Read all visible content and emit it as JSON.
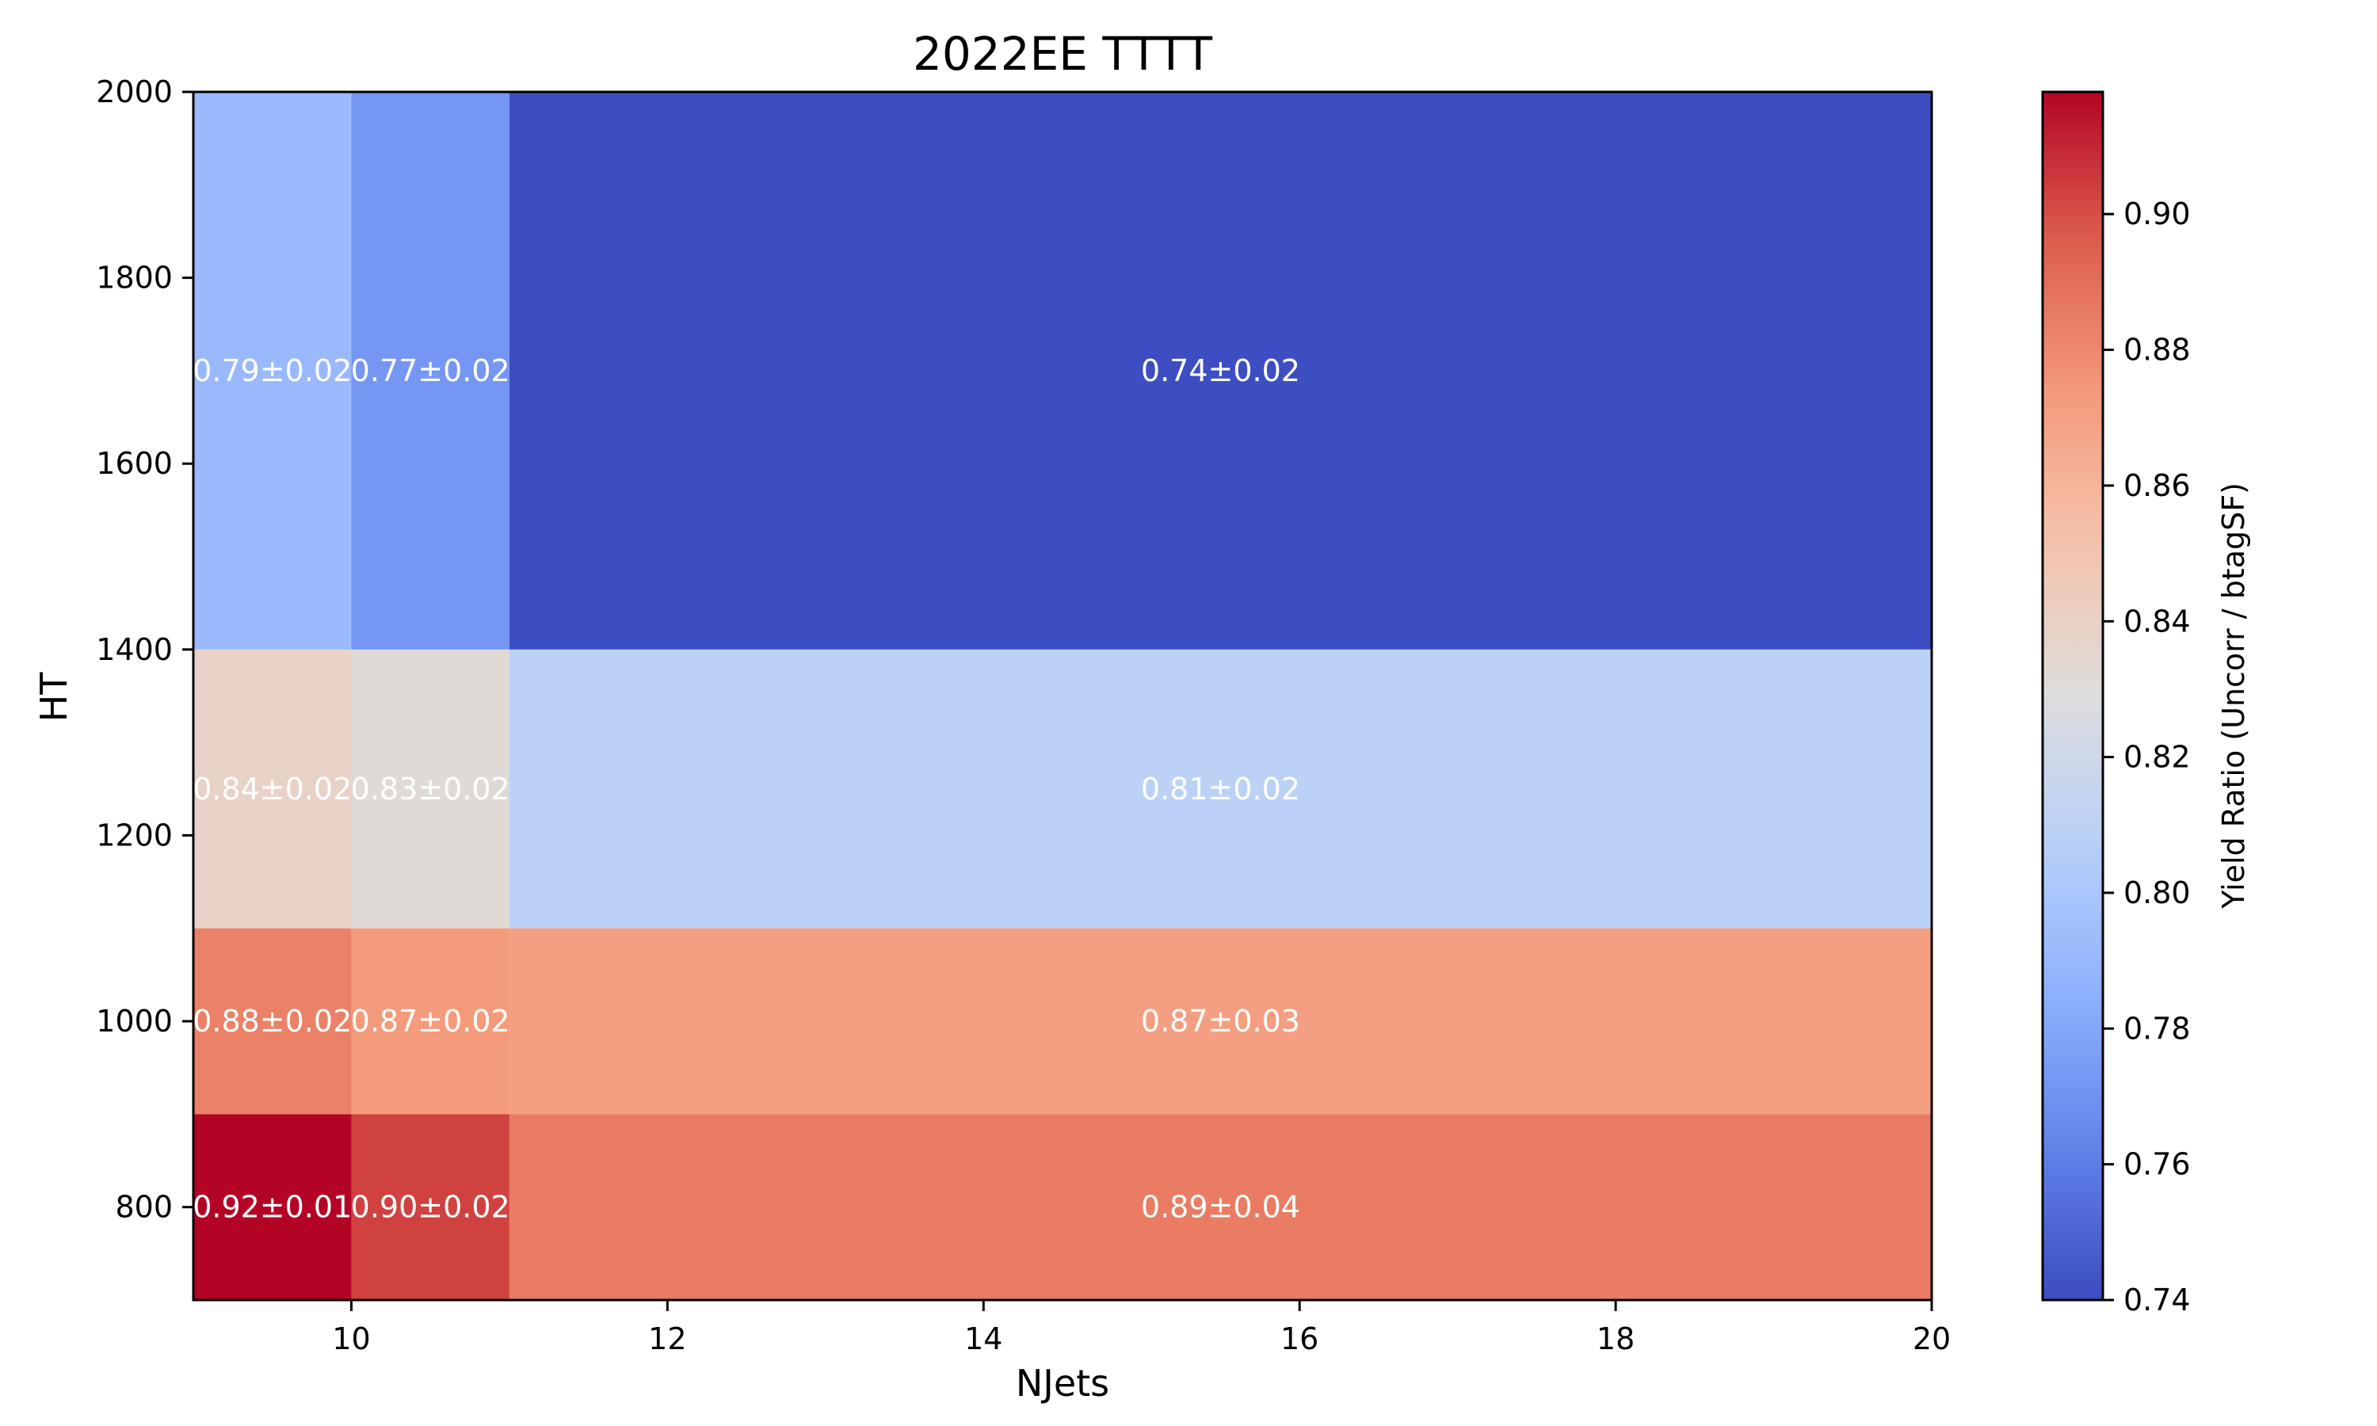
{
  "chart_data": {
    "type": "heatmap",
    "title": "2022EE TTTT",
    "xlabel": "NJets",
    "ylabel": "HT",
    "colorbar_label": "Yield Ratio (Uncorr / btagSF)",
    "colormap": "coolwarm",
    "xlim": [
      9,
      20
    ],
    "ylim": [
      700,
      2000
    ],
    "clim": [
      0.74,
      0.918
    ],
    "x_bin_edges": [
      9,
      10,
      11,
      20
    ],
    "y_bin_edges": [
      700,
      900,
      1100,
      1400,
      2000
    ],
    "values": [
      [
        0.918,
        0.903,
        0.885
      ],
      [
        0.883,
        0.873,
        0.871
      ],
      [
        0.839,
        0.832,
        0.809
      ],
      [
        0.791,
        0.772,
        0.741
      ]
    ],
    "cell_labels": [
      [
        "0.92±0.01",
        "0.90±0.02",
        "0.89±0.04"
      ],
      [
        "0.88±0.02",
        "0.87±0.02",
        "0.87±0.03"
      ],
      [
        "0.84±0.02",
        "0.83±0.02",
        "0.81±0.02"
      ],
      [
        "0.79±0.02",
        "0.77±0.02",
        "0.74±0.02"
      ]
    ],
    "x_ticks": [
      10,
      12,
      14,
      16,
      18,
      20
    ],
    "x_tick_labels": [
      "10",
      "12",
      "14",
      "16",
      "18",
      "20"
    ],
    "y_ticks": [
      800,
      1000,
      1200,
      1400,
      1600,
      1800,
      2000
    ],
    "y_tick_labels": [
      "800",
      "1000",
      "1200",
      "1400",
      "1600",
      "1800",
      "2000"
    ],
    "colorbar_ticks": [
      0.74,
      0.76,
      0.78,
      0.8,
      0.82,
      0.84,
      0.86,
      0.88,
      0.9
    ],
    "colorbar_tick_labels": [
      "0.74",
      "0.76",
      "0.78",
      "0.80",
      "0.82",
      "0.84",
      "0.86",
      "0.88",
      "0.90"
    ],
    "grid": false
  }
}
